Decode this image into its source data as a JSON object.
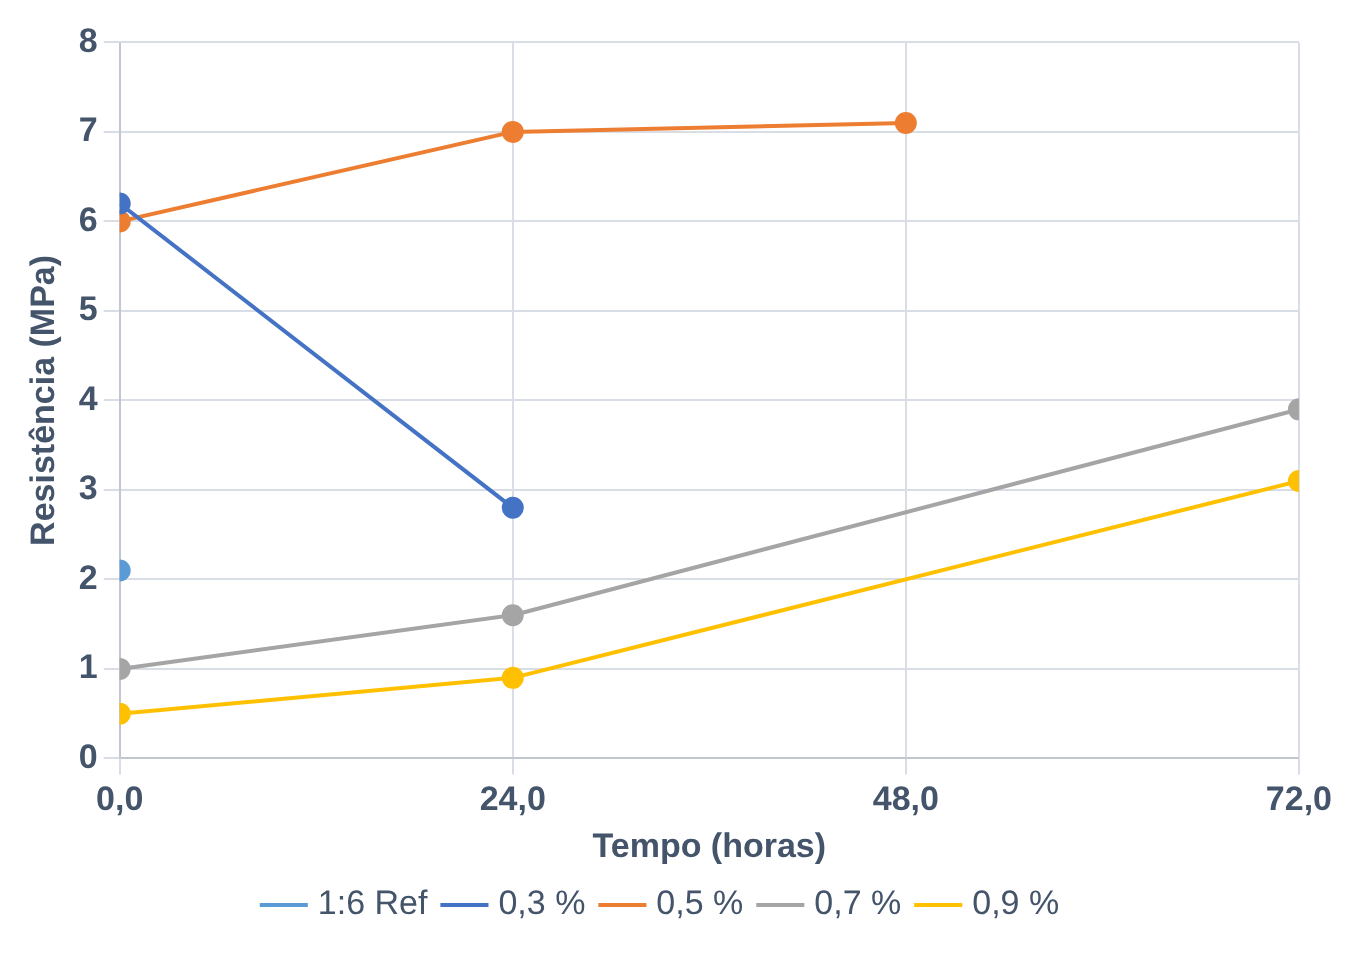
{
  "chart_data": {
    "type": "line",
    "xlabel": "Tempo (horas)",
    "ylabel": "Resistência (MPa)",
    "xlim": [
      0,
      72
    ],
    "xticks": [
      {
        "value": 0,
        "label": "0,0"
      },
      {
        "value": 24,
        "label": "24,0"
      },
      {
        "value": 48,
        "label": "48,0"
      },
      {
        "value": 72,
        "label": "72,0"
      }
    ],
    "ylim": [
      0,
      8
    ],
    "yticks": [
      0,
      1,
      2,
      3,
      4,
      5,
      6,
      7,
      8
    ],
    "grid": true,
    "legend": "bottom",
    "marker": "circle",
    "series": [
      {
        "name": "1:6 Ref",
        "color": "#5b9bd5",
        "x": [
          0
        ],
        "values": [
          2.1
        ]
      },
      {
        "name": "0,3 %",
        "color": "#4472c4",
        "x": [
          0,
          24
        ],
        "values": [
          6.2,
          2.8
        ]
      },
      {
        "name": "0,5 %",
        "color": "#ed7d31",
        "x": [
          0,
          24,
          48
        ],
        "values": [
          6.0,
          7.0,
          7.1
        ]
      },
      {
        "name": "0,7 %",
        "color": "#a5a5a5",
        "x": [
          0,
          24,
          72
        ],
        "values": [
          1.0,
          1.6,
          3.9
        ]
      },
      {
        "name": "0,9 %",
        "color": "#ffc000",
        "x": [
          0,
          24,
          72
        ],
        "values": [
          0.5,
          0.9,
          3.1
        ]
      }
    ]
  }
}
